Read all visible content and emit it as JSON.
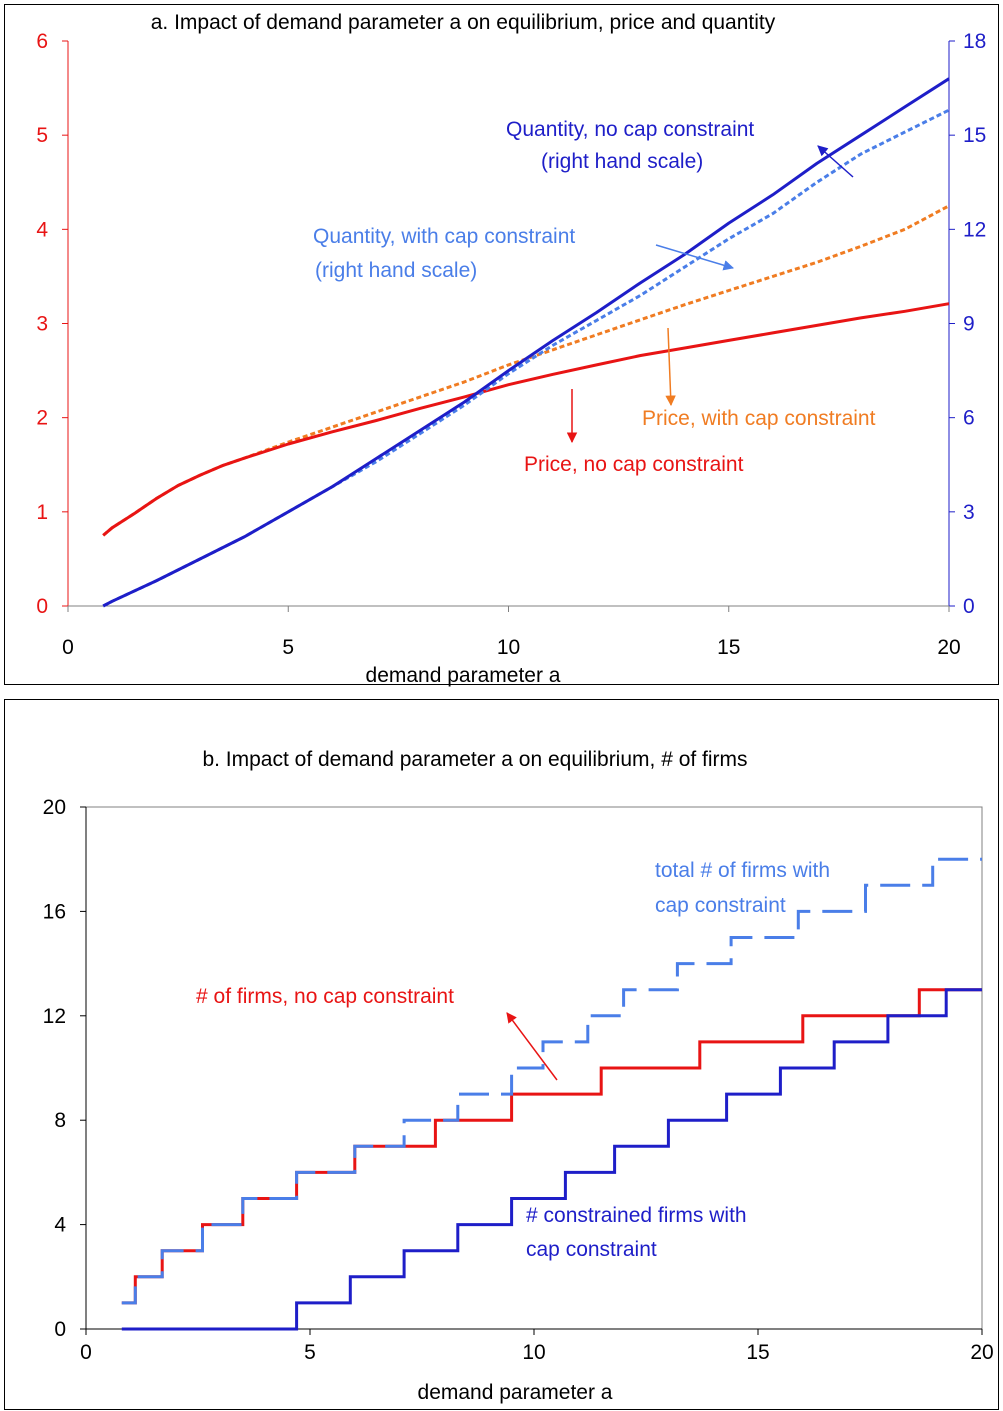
{
  "colors": {
    "red": "#e81414",
    "orange": "#f07c22",
    "navy": "#1e1ec8",
    "lightblue": "#4a7ee8",
    "axis_gray": "#808080",
    "black": "#000000"
  },
  "chart_data": [
    {
      "type": "line",
      "title": "a. Impact of demand parameter a on equilibrium, price and quantity",
      "xlabel": "demand parameter a",
      "xlim": [
        0,
        20
      ],
      "xticks": [
        "0",
        "5",
        "10",
        "15",
        "20"
      ],
      "ylim_left": [
        0,
        6
      ],
      "yticks_left": [
        "0",
        "1",
        "2",
        "3",
        "4",
        "5",
        "6"
      ],
      "ylim_right": [
        0,
        18
      ],
      "yticks_right": [
        "0",
        "3",
        "6",
        "9",
        "12",
        "15",
        "18"
      ],
      "grid": false,
      "series": [
        {
          "name": "Price, no cap constraint",
          "axis": "left",
          "style": "solid",
          "x": [
            0.8,
            1,
            1.5,
            2,
            2.5,
            3,
            3.5,
            4,
            5,
            6,
            7,
            8,
            9,
            10,
            11,
            12,
            13,
            14,
            15,
            16,
            17,
            18,
            19,
            20
          ],
          "y": [
            0.75,
            0.83,
            0.98,
            1.14,
            1.28,
            1.39,
            1.49,
            1.57,
            1.72,
            1.85,
            1.97,
            2.1,
            2.22,
            2.35,
            2.46,
            2.56,
            2.66,
            2.74,
            2.82,
            2.9,
            2.98,
            3.06,
            3.13,
            3.21
          ]
        },
        {
          "name": "Price, with cap constraint",
          "axis": "left",
          "style": "dotted",
          "x": [
            0.8,
            1,
            1.5,
            2,
            2.5,
            3,
            3.5,
            4,
            5,
            6,
            7,
            8,
            9,
            10,
            11,
            12,
            13,
            14,
            15,
            16,
            17,
            18,
            19,
            20
          ],
          "y": [
            0.75,
            0.83,
            0.98,
            1.14,
            1.28,
            1.39,
            1.49,
            1.57,
            1.74,
            1.9,
            2.06,
            2.22,
            2.38,
            2.56,
            2.72,
            2.88,
            3.04,
            3.2,
            3.35,
            3.5,
            3.65,
            3.82,
            4.0,
            4.25
          ]
        },
        {
          "name": "Quantity, no cap constraint",
          "axis": "right",
          "style": "solid",
          "x": [
            0.8,
            1,
            2,
            3,
            4,
            5,
            6,
            7,
            8,
            9,
            10,
            11,
            12,
            13,
            14,
            15,
            16,
            17,
            18,
            19,
            20
          ],
          "y": [
            0.0,
            0.15,
            0.8,
            1.5,
            2.2,
            3.0,
            3.8,
            4.7,
            5.6,
            6.5,
            7.5,
            8.45,
            9.35,
            10.3,
            11.2,
            12.2,
            13.1,
            14.1,
            15.0,
            15.9,
            16.8
          ]
        },
        {
          "name": "Quantity, with cap constraint",
          "axis": "right",
          "style": "dotted",
          "x": [
            0.8,
            1,
            2,
            3,
            4,
            5,
            6,
            7,
            8,
            9,
            10,
            11,
            12,
            13,
            14,
            15,
            16,
            17,
            18,
            19,
            20
          ],
          "y": [
            0.0,
            0.15,
            0.8,
            1.5,
            2.2,
            3.0,
            3.8,
            4.6,
            5.5,
            6.4,
            7.4,
            8.3,
            9.1,
            9.9,
            10.8,
            11.7,
            12.5,
            13.5,
            14.4,
            15.1,
            15.8
          ]
        }
      ],
      "annotations": {
        "q_no_cap": [
          "Quantity, no cap constraint",
          "(right hand scale)"
        ],
        "q_cap": [
          "Quantity, with cap constraint",
          "(right hand scale)"
        ],
        "p_cap": "Price, with cap constraint",
        "p_no_cap": "Price, no cap constraint"
      }
    },
    {
      "type": "line",
      "title": "b. Impact of demand parameter a on equilibrium, # of firms",
      "xlabel": "demand parameter a",
      "xlim": [
        0,
        20
      ],
      "xticks": [
        "0",
        "5",
        "10",
        "15",
        "20"
      ],
      "ylim": [
        0,
        20
      ],
      "yticks": [
        "0",
        "4",
        "8",
        "12",
        "16",
        "20"
      ],
      "grid": false,
      "series": [
        {
          "name": "# of firms, no cap constraint",
          "style": "step-solid",
          "steps_x": [
            0.8,
            1.1,
            1.7,
            2.6,
            3.5,
            4.7,
            6,
            7.8,
            9.5,
            11.5,
            13.7,
            16,
            18.6,
            20
          ],
          "steps_y": [
            1,
            2,
            3,
            4,
            5,
            6,
            7,
            8,
            9,
            10,
            11,
            12,
            13
          ]
        },
        {
          "name": "total # of firms with cap constraint",
          "style": "step-dashed",
          "steps_x": [
            0.8,
            1.1,
            1.7,
            2.6,
            3.5,
            4.7,
            6,
            7.1,
            8.3,
            9.5,
            10.2,
            11.2,
            12,
            13.2,
            14.4,
            15.9,
            17.4,
            18.9,
            20
          ],
          "steps_y": [
            1,
            2,
            3,
            4,
            5,
            6,
            7,
            8,
            9,
            10,
            11,
            12,
            13,
            14,
            15,
            16,
            17,
            18
          ]
        },
        {
          "name": "# constrained firms with cap constraint",
          "style": "step-solid",
          "steps_x": [
            0.8,
            4.7,
            5.9,
            7.1,
            8.3,
            9.5,
            10.7,
            11.8,
            13,
            14.3,
            15.5,
            16.7,
            17.9,
            19.2,
            20
          ],
          "steps_y": [
            0,
            1,
            2,
            3,
            4,
            5,
            6,
            7,
            8,
            9,
            10,
            11,
            12,
            13
          ]
        }
      ],
      "annotations": {
        "total_cap": [
          "total # of firms with",
          "cap constraint"
        ],
        "no_cap": "# of firms, no cap constraint",
        "constrained": [
          "# constrained firms with",
          "cap constraint"
        ]
      }
    }
  ]
}
